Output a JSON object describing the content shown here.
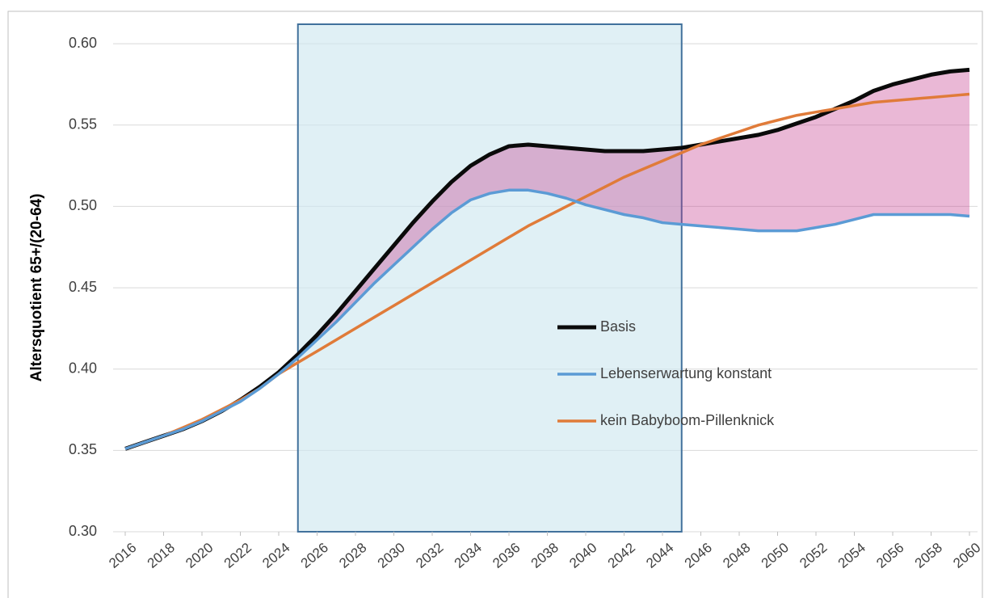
{
  "chart_data": {
    "type": "line",
    "y_label": "Altersquotient 65+/(20-64)",
    "x": [
      2016,
      2017,
      2018,
      2019,
      2020,
      2021,
      2022,
      2023,
      2024,
      2025,
      2026,
      2027,
      2028,
      2029,
      2030,
      2031,
      2032,
      2033,
      2034,
      2035,
      2036,
      2037,
      2038,
      2039,
      2040,
      2041,
      2042,
      2043,
      2044,
      2045,
      2046,
      2047,
      2048,
      2049,
      2050,
      2051,
      2052,
      2053,
      2054,
      2055,
      2056,
      2057,
      2058,
      2059,
      2060
    ],
    "series": [
      {
        "name": "Basis",
        "color": "#0a0a0a",
        "values": [
          0.351,
          0.355,
          0.359,
          0.363,
          0.368,
          0.374,
          0.381,
          0.389,
          0.398,
          0.409,
          0.421,
          0.434,
          0.448,
          0.462,
          0.476,
          0.49,
          0.503,
          0.515,
          0.525,
          0.532,
          0.537,
          0.538,
          0.537,
          0.536,
          0.535,
          0.534,
          0.534,
          0.534,
          0.535,
          0.536,
          0.538,
          0.54,
          0.542,
          0.544,
          0.547,
          0.551,
          0.555,
          0.56,
          0.565,
          0.571,
          0.575,
          0.578,
          0.581,
          0.583,
          0.584
        ]
      },
      {
        "name": "Lebenserwartung konstant",
        "color": "#5b9bd5",
        "values": [
          0.351,
          0.355,
          0.359,
          0.363,
          0.368,
          0.374,
          0.38,
          0.388,
          0.397,
          0.407,
          0.418,
          0.429,
          0.441,
          0.453,
          0.464,
          0.475,
          0.486,
          0.496,
          0.504,
          0.508,
          0.51,
          0.51,
          0.508,
          0.505,
          0.501,
          0.498,
          0.495,
          0.493,
          0.49,
          0.489,
          0.488,
          0.487,
          0.486,
          0.485,
          0.485,
          0.485,
          0.487,
          0.489,
          0.492,
          0.495,
          0.495,
          0.495,
          0.495,
          0.495,
          0.494
        ]
      },
      {
        "name": "kein Babyboom-Pillenknick",
        "color": "#e07b39",
        "values": [
          0.351,
          0.355,
          0.359,
          0.364,
          0.369,
          0.375,
          0.381,
          0.388,
          0.397,
          0.404,
          0.411,
          0.418,
          0.425,
          0.432,
          0.439,
          0.446,
          0.453,
          0.46,
          0.467,
          0.474,
          0.481,
          0.488,
          0.494,
          0.5,
          0.506,
          0.512,
          0.518,
          0.523,
          0.528,
          0.533,
          0.538,
          0.542,
          0.546,
          0.55,
          0.553,
          0.556,
          0.558,
          0.56,
          0.562,
          0.564,
          0.565,
          0.566,
          0.567,
          0.568,
          0.569
        ]
      }
    ],
    "fill_between_color": "#c2348a",
    "highlight": {
      "x": [
        2025,
        2045
      ],
      "color": "#cfe8f0"
    },
    "xlim": [
      2016,
      2060
    ],
    "xticks": [
      2016,
      2018,
      2020,
      2022,
      2024,
      2026,
      2028,
      2030,
      2032,
      2034,
      2036,
      2038,
      2040,
      2042,
      2044,
      2046,
      2048,
      2050,
      2052,
      2054,
      2056,
      2058,
      2060
    ],
    "ylim": [
      0.3,
      0.612
    ],
    "yticks": [
      {
        "value": 0.3,
        "label": "0.30"
      },
      {
        "value": 0.35,
        "label": "0.35"
      },
      {
        "value": 0.4,
        "label": "0.40"
      },
      {
        "value": 0.45,
        "label": "0.45"
      },
      {
        "value": 0.5,
        "label": "0.50"
      },
      {
        "value": 0.55,
        "label": "0.55"
      },
      {
        "value": 0.6,
        "label": "0.60"
      }
    ],
    "grid": true
  }
}
